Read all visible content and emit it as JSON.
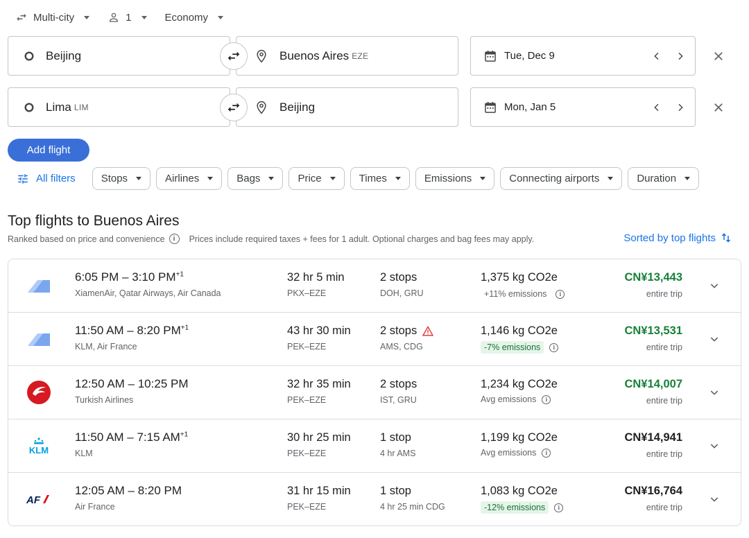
{
  "options": {
    "trip_type": "Multi-city",
    "passengers": "1",
    "cabin_class": "Economy"
  },
  "legs": [
    {
      "origin": "Beijing",
      "origin_code": "",
      "destination": "Buenos Aires",
      "destination_code": "EZE",
      "date": "Tue, Dec 9"
    },
    {
      "origin": "Lima",
      "origin_code": "LIM",
      "destination": "Beijing",
      "destination_code": "",
      "date": "Mon, Jan 5"
    }
  ],
  "add_flight_label": "Add flight",
  "filters": {
    "all_filters_label": "All filters",
    "chips": [
      "Stops",
      "Airlines",
      "Bags",
      "Price",
      "Times",
      "Emissions",
      "Connecting airports",
      "Duration"
    ]
  },
  "section": {
    "title": "Top flights to Buenos Aires",
    "ranking_note": "Ranked based on price and convenience",
    "price_note": "Prices include required taxes + fees for 1 adult. Optional charges and bag fees may apply.",
    "sort_label": "Sorted by top flights"
  },
  "flights": [
    {
      "logo": "multi-airline-logo",
      "times": "6:05 PM – 3:10 PM",
      "plus_day": "+1",
      "airlines": "XiamenAir, Qatar Airways, Air Canada",
      "duration": "32 hr 5 min",
      "route": "PKX–EZE",
      "stops": "2 stops",
      "warning": false,
      "stop_info": "DOH, GRU",
      "co2": "1,375 kg CO2e",
      "emissions": "+11% emissions",
      "emissions_tag": "none",
      "price": "CN¥13,443",
      "price_color": "#188038",
      "price_type": "entire trip"
    },
    {
      "logo": "multi-airline-logo",
      "times": "11:50 AM – 8:20 PM",
      "plus_day": "+1",
      "airlines": "KLM, Air France",
      "duration": "43 hr 30 min",
      "route": "PEK–EZE",
      "stops": "2 stops",
      "warning": true,
      "stop_info": "AMS, CDG",
      "co2": "1,146 kg CO2e",
      "emissions": "-7% emissions",
      "emissions_tag": "green",
      "price": "CN¥13,531",
      "price_color": "#188038",
      "price_type": "entire trip"
    },
    {
      "logo": "turkish-airlines-logo",
      "times": "12:50 AM – 10:25 PM",
      "plus_day": "",
      "airlines": "Turkish Airlines",
      "duration": "32 hr 35 min",
      "route": "PEK–EZE",
      "stops": "2 stops",
      "warning": false,
      "stop_info": "IST, GRU",
      "co2": "1,234 kg CO2e",
      "emissions": "Avg emissions",
      "emissions_tag": "none",
      "price": "CN¥14,007",
      "price_color": "#188038",
      "price_type": "entire trip"
    },
    {
      "logo": "klm-logo",
      "times": "11:50 AM – 7:15 AM",
      "plus_day": "+1",
      "airlines": "KLM",
      "duration": "30 hr 25 min",
      "route": "PEK–EZE",
      "stops": "1 stop",
      "warning": false,
      "stop_info": "4 hr AMS",
      "co2": "1,199 kg CO2e",
      "emissions": "Avg emissions",
      "emissions_tag": "none",
      "price": "CN¥14,941",
      "price_color": "#202124",
      "price_type": "entire trip"
    },
    {
      "logo": "air-france-logo",
      "times": "12:05 AM – 8:20 PM",
      "plus_day": "",
      "airlines": "Air France",
      "duration": "31 hr 15 min",
      "route": "PEK–EZE",
      "stops": "1 stop",
      "warning": false,
      "stop_info": "4 hr 25 min CDG",
      "co2": "1,083 kg CO2e",
      "emissions": "-12% emissions",
      "emissions_tag": "green",
      "price": "CN¥16,764",
      "price_color": "#202124",
      "price_type": "entire trip"
    }
  ],
  "logo_text": {
    "klm": "KLM",
    "air_france": "AF"
  },
  "colors": {
    "accent": "#1a73e8",
    "button": "#3b6fd8",
    "good_price": "#188038",
    "warning": "#d93025"
  }
}
